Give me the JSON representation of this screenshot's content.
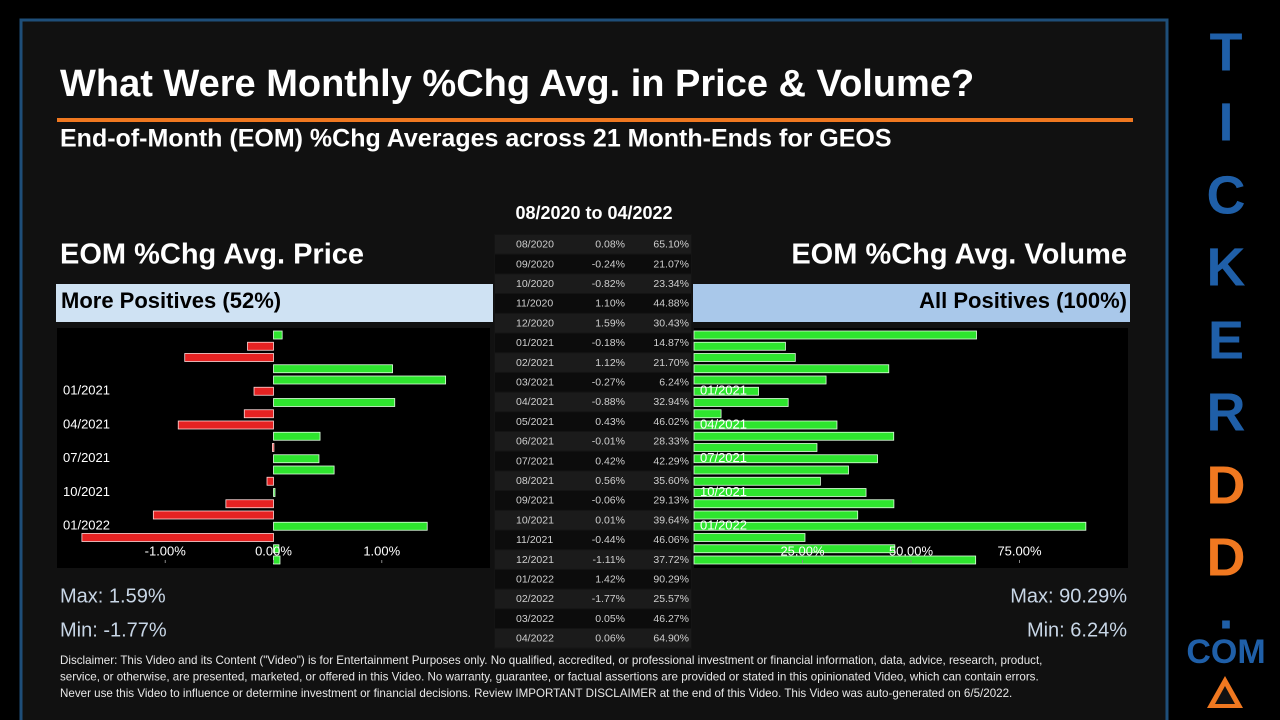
{
  "header": {
    "title": "What Were Monthly %Chg Avg. in Price & Volume?",
    "subtitle": "End-of-Month (EOM) %Chg Averages across 21 Month-Ends for GEOS"
  },
  "table": {
    "title": "08/2020 to 04/2022",
    "rows": [
      [
        "08/2020",
        "0.08%",
        "65.10%"
      ],
      [
        "09/2020",
        "-0.24%",
        "21.07%"
      ],
      [
        "10/2020",
        "-0.82%",
        "23.34%"
      ],
      [
        "11/2020",
        "1.10%",
        "44.88%"
      ],
      [
        "12/2020",
        "1.59%",
        "30.43%"
      ],
      [
        "01/2021",
        "-0.18%",
        "14.87%"
      ],
      [
        "02/2021",
        "1.12%",
        "21.70%"
      ],
      [
        "03/2021",
        "-0.27%",
        "6.24%"
      ],
      [
        "04/2021",
        "-0.88%",
        "32.94%"
      ],
      [
        "05/2021",
        "0.43%",
        "46.02%"
      ],
      [
        "06/2021",
        "-0.01%",
        "28.33%"
      ],
      [
        "07/2021",
        "0.42%",
        "42.29%"
      ],
      [
        "08/2021",
        "0.56%",
        "35.60%"
      ],
      [
        "09/2021",
        "-0.06%",
        "29.13%"
      ],
      [
        "10/2021",
        "0.01%",
        "39.64%"
      ],
      [
        "11/2021",
        "-0.44%",
        "46.06%"
      ],
      [
        "12/2021",
        "-1.11%",
        "37.72%"
      ],
      [
        "01/2022",
        "1.42%",
        "90.29%"
      ],
      [
        "02/2022",
        "-1.77%",
        "25.57%"
      ],
      [
        "03/2022",
        "0.05%",
        "46.27%"
      ],
      [
        "04/2022",
        "0.06%",
        "64.90%"
      ]
    ]
  },
  "chart_data": [
    {
      "type": "bar",
      "orientation": "horizontal",
      "title": "EOM %Chg Avg. Price",
      "banner": "More Positives (52%)",
      "categories": [
        null,
        null,
        null,
        null,
        null,
        "01/2021",
        null,
        null,
        "04/2021",
        null,
        null,
        "07/2021",
        null,
        null,
        "10/2021",
        null,
        null,
        "01/2022",
        null,
        null,
        null
      ],
      "values": [
        0.08,
        -0.24,
        -0.82,
        1.1,
        1.59,
        -0.18,
        1.12,
        -0.27,
        -0.88,
        0.43,
        -0.01,
        0.42,
        0.56,
        -0.06,
        0.01,
        -0.44,
        -1.11,
        1.42,
        -1.77,
        0.05,
        0.06
      ],
      "xlim": [
        -2,
        2
      ],
      "xticks": [
        {
          "value": -1,
          "label": "-1.00%"
        },
        {
          "value": 0,
          "label": "0.00%"
        },
        {
          "value": 1,
          "label": "1.00%"
        }
      ],
      "colors": {
        "positive": "#2ee52e",
        "negative": "#e52222"
      },
      "annotations": [
        "Max: 1.59%",
        "Min: -1.77%"
      ]
    },
    {
      "type": "bar",
      "orientation": "horizontal",
      "title": "EOM %Chg Avg. Volume",
      "banner": "All Positives (100%)",
      "categories": [
        null,
        null,
        null,
        null,
        null,
        "01/2021",
        null,
        null,
        "04/2021",
        null,
        null,
        "07/2021",
        null,
        null,
        "10/2021",
        null,
        null,
        "01/2022",
        null,
        null,
        null
      ],
      "values": [
        65.1,
        21.07,
        23.34,
        44.88,
        30.43,
        14.87,
        21.7,
        6.24,
        32.94,
        46.02,
        28.33,
        42.29,
        35.6,
        29.13,
        39.64,
        46.06,
        37.72,
        90.29,
        25.57,
        46.27,
        64.9
      ],
      "xlim": [
        0,
        100
      ],
      "xticks": [
        {
          "value": 25,
          "label": "25.00%"
        },
        {
          "value": 50,
          "label": "50.00%"
        },
        {
          "value": 75,
          "label": "75.00%"
        }
      ],
      "colors": {
        "positive": "#2ee52e",
        "negative": "#e52222"
      },
      "annotations": [
        "Max: 90.29%",
        "Min: 6.24%"
      ]
    }
  ],
  "disclaimer": [
    "Disclaimer: This Video and its Content (\"Video\") is for Entertainment Purposes only. No qualified, accredited, or professional investment or financial information, data, advice, research, product,",
    "service, or otherwise, are presented, marketed, or offered in this Video. No warranty, guarantee, or factual assertions are provided or stated in this opinionated Video, which can contain errors.",
    "Never use this Video to influence or determine investment or financial decisions. Review IMPORTANT DISCLAIMER at the end of this Video. This Video was auto-generated on 6/5/2022."
  ],
  "brand": {
    "letters": [
      {
        "text": "T",
        "color": "#1f5fa8"
      },
      {
        "text": "I",
        "color": "#1f5fa8"
      },
      {
        "text": "C",
        "color": "#1f5fa8"
      },
      {
        "text": "K",
        "color": "#1f5fa8"
      },
      {
        "text": "E",
        "color": "#1f5fa8"
      },
      {
        "text": "R",
        "color": "#1f5fa8"
      },
      {
        "text": "D",
        "color": "#f07820"
      },
      {
        "text": "D",
        "color": "#f07820"
      },
      {
        "text": ".",
        "color": "#1f5fa8"
      },
      {
        "text": "COM",
        "color": "#1f5fa8"
      }
    ]
  }
}
